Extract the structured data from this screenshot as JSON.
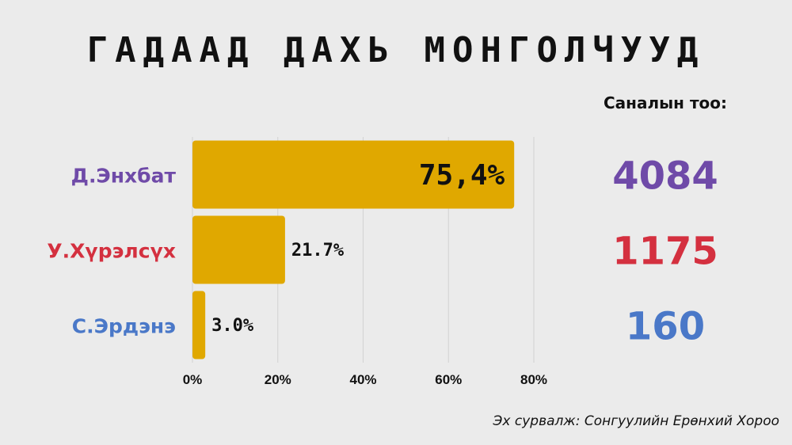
{
  "title": "ГАДААД ДАХЬ МОНГОЛЧУУД",
  "votes_header": "Саналын тоо:",
  "source": "Эх сурвалж: Сонгуулийн Ерөнхий Хороо",
  "chart_data": {
    "type": "bar",
    "orientation": "horizontal",
    "categories": [
      "Д.Энхбат",
      "У.Хүрэлсүх",
      "С.Эрдэнэ"
    ],
    "values": [
      75.4,
      21.7,
      3.0
    ],
    "value_labels": [
      "75,4%",
      "21.7%",
      "3.0%"
    ],
    "votes": [
      "4084",
      "1175",
      "160"
    ],
    "category_colors": [
      "#6f4aa8",
      "#d4303f",
      "#4a78c8"
    ],
    "bar_color": "#e0a800",
    "xlim": [
      0,
      80
    ],
    "xticks": [
      0,
      20,
      40,
      60,
      80
    ],
    "xtick_labels": [
      "0%",
      "20%",
      "40%",
      "60%",
      "80%"
    ],
    "grid": true
  }
}
